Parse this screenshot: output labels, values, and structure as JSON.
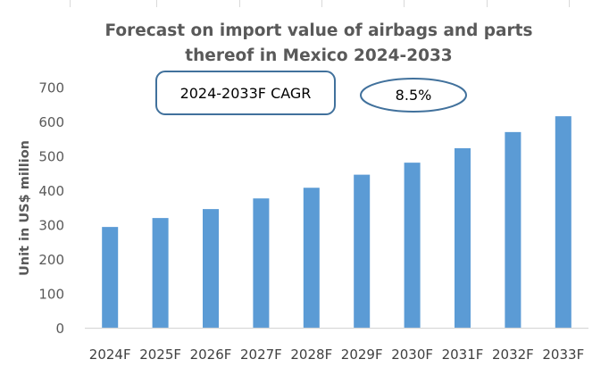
{
  "chart_data": {
    "type": "bar",
    "title": "Forecast on import value of airbags and parts thereof in Mexico 2024-2033",
    "title_lines": [
      "Forecast on import value of airbags and parts",
      "thereof in Mexico 2024-2033"
    ],
    "xlabel": "",
    "ylabel": "Unit in US$ million",
    "categories": [
      "2024F",
      "2025F",
      "2026F",
      "2027F",
      "2028F",
      "2029F",
      "2030F",
      "2031F",
      "2032F",
      "2033F"
    ],
    "values": [
      295,
      321,
      347,
      378,
      409,
      447,
      482,
      524,
      571,
      617
    ],
    "ylim": [
      0,
      700
    ],
    "yticks": [
      0,
      100,
      200,
      300,
      400,
      500,
      600,
      700
    ],
    "grid": false,
    "legend": "none",
    "annotations": {
      "cagr_label": "2024-2033F CAGR",
      "cagr_value": "8.5%"
    },
    "colors": {
      "bar": "#5B9BD5",
      "annotation_border": "#41719C",
      "axis": "#D9D9D9"
    }
  }
}
